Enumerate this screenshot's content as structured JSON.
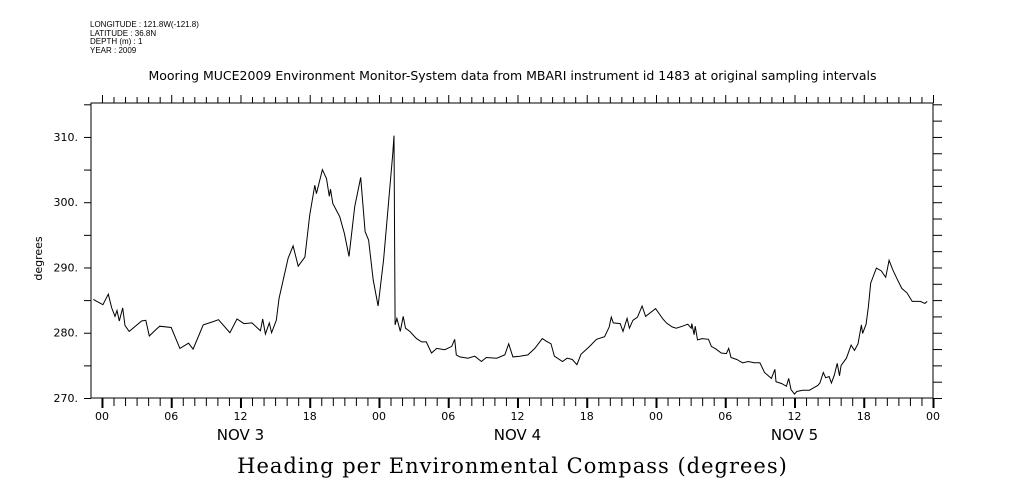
{
  "header": {
    "longitude": "LONGITUDE : 121.8W(-121.8)",
    "latitude": "LATITUDE : 36.8N",
    "depth": "DEPTH (m) : 1",
    "year": "YEAR : 2009"
  },
  "chart_data": {
    "type": "line",
    "title": "Mooring MUCE2009 Environment Monitor-System data from MBARI instrument id 1483 at original sampling intervals",
    "xlabel": "Heading per Environmental Compass (degrees)",
    "ylabel": "degrees",
    "x_units": "hours since Nov 3 00:00",
    "xlim": [
      -0.95,
      72
    ],
    "ylim": [
      270,
      315.2
    ],
    "yticks": [
      270,
      280,
      290,
      300,
      310
    ],
    "ytick_labels": [
      "270.",
      "280.",
      "290.",
      "300.",
      "310."
    ],
    "xticks": [
      0,
      6,
      12,
      18,
      24,
      30,
      36,
      42,
      48,
      54,
      60,
      66,
      72
    ],
    "xtick_labels": [
      "00",
      "06",
      "12",
      "18",
      "00",
      "06",
      "12",
      "18",
      "00",
      "06",
      "12",
      "18",
      "00"
    ],
    "day_labels": [
      {
        "x": 12,
        "label": "NOV  3"
      },
      {
        "x": 36,
        "label": "NOV  4"
      },
      {
        "x": 60,
        "label": "NOV  5"
      }
    ],
    "grid": false,
    "series": [
      {
        "name": "Heading",
        "x": [
          -0.75,
          0.08,
          0.55,
          0.84,
          1.13,
          1.3,
          1.5,
          1.8,
          2.0,
          2.36,
          3.43,
          3.8,
          4.1,
          4.68,
          5.0,
          6.0,
          6.75,
          7.5,
          7.9,
          8.77,
          9.64,
          10.1,
          11.08,
          11.7,
          12.3,
          13.0,
          13.73,
          13.93,
          14.16,
          14.5,
          14.7,
          15.1,
          15.35,
          16.13,
          16.56,
          17.0,
          17.58,
          18.0,
          18.44,
          18.58,
          19.1,
          19.45,
          19.7,
          19.8,
          20.0,
          20.6,
          21.0,
          21.4,
          21.9,
          22.42,
          22.8,
          23.1,
          23.5,
          23.92,
          24.4,
          25.2,
          25.3,
          25.4,
          25.55,
          25.85,
          26.1,
          26.3,
          26.67,
          27.25,
          27.7,
          28.1,
          28.55,
          29.0,
          29.7,
          30.3,
          30.56,
          30.7,
          31.0,
          31.7,
          32.3,
          32.87,
          33.3,
          34.2,
          34.9,
          35.24,
          35.6,
          36.2,
          36.9,
          37.5,
          38.15,
          38.5,
          38.9,
          39.2,
          39.9,
          40.3,
          40.75,
          41.15,
          41.5,
          42.25,
          42.85,
          43.55,
          43.95,
          44.13,
          44.3,
          44.9,
          45.14,
          45.5,
          45.7,
          46.0,
          46.4,
          46.8,
          47.1,
          47.97,
          48.6,
          48.9,
          49.4,
          49.75,
          50.3,
          50.76,
          51.05,
          51.1,
          51.3,
          51.4,
          51.6,
          52.0,
          52.55,
          52.8,
          53.2,
          53.65,
          54.1,
          54.3,
          54.5,
          55.0,
          55.3,
          55.5,
          56.0,
          56.5,
          57.0,
          57.4,
          58.0,
          58.3,
          58.4,
          58.9,
          59.3,
          59.5,
          59.7,
          60.0,
          60.2,
          60.7,
          61.3,
          61.6,
          62.0,
          62.2,
          62.5,
          62.7,
          63.0,
          63.2,
          63.45,
          63.7,
          63.9,
          64.04,
          64.5,
          64.9,
          65.2,
          65.5,
          65.8,
          65.9,
          66.2,
          66.4,
          66.6,
          67.1,
          67.5,
          67.9,
          68.2,
          68.5,
          68.9,
          69.3,
          69.75,
          70.2,
          70.9,
          71.3,
          71.5
        ],
        "y": [
          285.1,
          284.3,
          285.9,
          283.8,
          282.5,
          283.4,
          281.8,
          283.8,
          281.1,
          280.2,
          281.8,
          281.9,
          279.5,
          280.5,
          281.0,
          280.8,
          277.6,
          278.4,
          277.5,
          281.2,
          281.7,
          282.0,
          280.0,
          282.1,
          281.4,
          281.5,
          280.3,
          282.1,
          279.8,
          281.5,
          280.0,
          281.9,
          285.3,
          291.4,
          293.3,
          290.2,
          291.6,
          298.0,
          302.6,
          301.3,
          305.0,
          303.6,
          300.9,
          302.0,
          299.8,
          297.8,
          295.2,
          291.7,
          299.3,
          303.8,
          295.5,
          294.2,
          288.1,
          284.1,
          291.2,
          307.5,
          310.2,
          281.2,
          282.2,
          280.2,
          282.5,
          280.7,
          280.2,
          279.1,
          278.6,
          278.6,
          276.9,
          277.6,
          277.4,
          277.9,
          279.0,
          276.6,
          276.3,
          276.1,
          276.4,
          275.6,
          276.2,
          276.1,
          276.6,
          278.3,
          276.3,
          276.4,
          276.6,
          277.6,
          279.1,
          278.7,
          278.3,
          276.4,
          275.6,
          276.1,
          275.9,
          275.1,
          276.7,
          277.9,
          279.0,
          279.4,
          280.9,
          282.4,
          281.5,
          281.4,
          280.2,
          282.2,
          280.7,
          281.9,
          282.4,
          284.1,
          282.5,
          283.7,
          282.1,
          281.5,
          280.9,
          280.7,
          281.0,
          281.3,
          280.7,
          281.4,
          279.7,
          281.0,
          278.9,
          279.1,
          279.0,
          277.9,
          277.5,
          276.9,
          276.8,
          277.6,
          276.2,
          275.9,
          275.6,
          275.4,
          275.6,
          275.4,
          275.4,
          273.9,
          273.0,
          274.4,
          272.5,
          272.2,
          271.8,
          273.0,
          271.3,
          270.6,
          271.0,
          271.2,
          271.2,
          271.5,
          271.9,
          272.3,
          273.9,
          273.1,
          273.3,
          272.3,
          273.5,
          275.3,
          273.4,
          275.0,
          276.1,
          278.1,
          277.3,
          278.3,
          281.2,
          279.9,
          281.3,
          284.0,
          287.6,
          289.9,
          289.5,
          288.5,
          291.1,
          289.7,
          288.2,
          286.8,
          286.1,
          284.8,
          284.8,
          284.5,
          284.8
        ]
      }
    ]
  }
}
